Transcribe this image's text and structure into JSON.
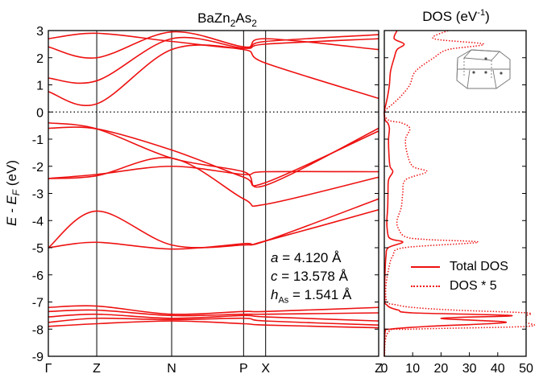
{
  "band_panel": {
    "title": {
      "base": "BaZn",
      "sub1": "2",
      "mid": "As",
      "sub2": "2"
    },
    "ylabel": {
      "pre": "E - E",
      "sub": "F",
      "post": " (eV)"
    },
    "ylim": [
      -9,
      3
    ],
    "yticks": [
      "-9",
      "-8",
      "-7",
      "-6",
      "-5",
      "-4",
      "-3",
      "-2",
      "-1",
      "0",
      "1",
      "2",
      "3"
    ],
    "kpoints": [
      {
        "label": "Γ",
        "pos": 0.0
      },
      {
        "label": "Z",
        "pos": 0.1465
      },
      {
        "label": "N",
        "pos": 0.3733
      },
      {
        "label": "P",
        "pos": 0.5911
      },
      {
        "label": "X",
        "pos": 0.6578
      },
      {
        "label": "Z",
        "pos": 1.0
      }
    ],
    "params": [
      {
        "sym": "a",
        "sub": "",
        "value": " = 4.120 Å"
      },
      {
        "sym": "c",
        "sub": "",
        "value": " = 13.578 Å"
      },
      {
        "sym": "h",
        "sub": "As",
        "value": " = 1.541 Å"
      }
    ],
    "fermi_level": 0
  },
  "dos_panel": {
    "title": {
      "pre": "DOS (eV",
      "sup": "-1",
      "post": ")"
    },
    "xticks": [
      "0",
      "10",
      "20",
      "30",
      "40",
      "50"
    ],
    "xlim": [
      0,
      50
    ],
    "legend": [
      {
        "label": "Total DOS",
        "style": "solid"
      },
      {
        "label": "DOS * 5",
        "style": "dotted"
      }
    ]
  },
  "colors": {
    "bands": "#ee1111",
    "axes": "#000000"
  },
  "chart_data": [
    {
      "type": "line",
      "title": "BaZn2As2",
      "ylabel": "E - E_F (eV)",
      "ylim": [
        -9,
        3
      ],
      "x_kpath": [
        "Γ",
        "Z",
        "N",
        "P",
        "X",
        "Z"
      ],
      "series": [
        {
          "x": [
            0,
            0.1465,
            0.3733,
            0.5911,
            0.6578,
            1.0
          ],
          "values": [
            -0.4,
            -0.62,
            -1.7,
            -2.2,
            -2.7,
            -0.6
          ]
        },
        {
          "x": [
            0,
            0.1465,
            0.3733,
            0.5911,
            0.6578,
            1.0
          ],
          "values": [
            -0.6,
            -0.62,
            -1.4,
            -2.4,
            -2.6,
            -0.7
          ]
        },
        {
          "x": [
            0,
            0.1465,
            0.3733,
            0.5911,
            0.6578,
            1.0
          ],
          "values": [
            -2.45,
            -2.3,
            -2.0,
            -2.3,
            -2.2,
            -2.2
          ]
        },
        {
          "x": [
            0,
            0.1465,
            0.3733,
            0.5911,
            0.6578,
            1.0
          ],
          "values": [
            -2.45,
            -2.35,
            -1.7,
            -3.2,
            -3.4,
            -2.4
          ]
        },
        {
          "x": [
            0,
            0.1465,
            0.3733,
            0.5911,
            0.6578,
            1.0
          ],
          "values": [
            -5.0,
            -3.65,
            -4.9,
            -4.9,
            -4.75,
            -3.6
          ]
        },
        {
          "x": [
            0,
            0.1465,
            0.3733,
            0.5911,
            0.6578,
            1.0
          ],
          "values": [
            -5.0,
            -4.8,
            -5.05,
            -4.85,
            -4.75,
            -3.2
          ]
        },
        {
          "x": [
            0,
            0.1465,
            0.3733,
            0.5911,
            0.6578,
            1.0
          ],
          "values": [
            0.75,
            0.3,
            2.3,
            2.3,
            1.8,
            0.5
          ]
        },
        {
          "x": [
            0,
            0.1465,
            0.3733,
            0.5911,
            0.6578,
            1.0
          ],
          "values": [
            1.25,
            1.15,
            2.7,
            2.35,
            2.5,
            2.7
          ]
        },
        {
          "x": [
            0,
            0.1465,
            0.3733,
            0.5911,
            0.6578,
            1.0
          ],
          "values": [
            2.4,
            2.0,
            2.95,
            2.4,
            2.6,
            2.85
          ]
        },
        {
          "x": [
            0,
            0.1465,
            0.3733,
            0.5911,
            0.6578,
            1.0
          ],
          "values": [
            2.7,
            2.9,
            2.6,
            2.35,
            2.7,
            2.3
          ]
        },
        {
          "x": [
            0,
            0.1465,
            0.3733,
            0.5911,
            0.6578,
            1.0
          ],
          "values": [
            -7.2,
            -7.15,
            -7.45,
            -7.35,
            -7.35,
            -7.2
          ]
        },
        {
          "x": [
            0,
            0.1465,
            0.3733,
            0.5911,
            0.6578,
            1.0
          ],
          "values": [
            -7.35,
            -7.3,
            -7.5,
            -7.45,
            -7.45,
            -7.4
          ]
        },
        {
          "x": [
            0,
            0.1465,
            0.3733,
            0.5911,
            0.6578,
            1.0
          ],
          "values": [
            -7.55,
            -7.45,
            -7.6,
            -7.5,
            -7.55,
            -7.7
          ]
        },
        {
          "x": [
            0,
            0.1465,
            0.3733,
            0.5911,
            0.6578,
            1.0
          ],
          "values": [
            -7.75,
            -7.6,
            -7.65,
            -7.6,
            -7.7,
            -7.85
          ]
        },
        {
          "x": [
            0,
            0.1465,
            0.3733,
            0.5911,
            0.6578,
            1.0
          ],
          "values": [
            -7.9,
            -7.8,
            -7.7,
            -7.8,
            -7.85,
            -7.95
          ]
        }
      ]
    },
    {
      "type": "line",
      "title": "DOS (eV-1)",
      "xlim": [
        0,
        50
      ],
      "ylim": [
        -9,
        3
      ],
      "series": [
        {
          "name": "Total DOS",
          "style": "solid",
          "energy": [
            -9,
            -8.1,
            -8.0,
            -7.9,
            -7.75,
            -7.6,
            -7.5,
            -7.4,
            -7.3,
            -7.2,
            -7.1,
            -7.0,
            -6.5,
            -5.8,
            -5.3,
            -5.0,
            -4.8,
            -4.7,
            -4.6,
            -4.3,
            -4.0,
            -3.5,
            -3.0,
            -2.5,
            -2.2,
            -2.0,
            -1.5,
            -1.0,
            -0.6,
            -0.4,
            -0.3,
            0,
            0.3,
            0.6,
            1.0,
            1.5,
            2.0,
            2.3,
            2.5,
            2.7,
            3.0
          ],
          "dos": [
            0,
            0.3,
            2,
            15,
            43,
            20,
            45,
            10,
            5,
            2,
            0.8,
            0.2,
            0.1,
            0.3,
            0.6,
            1.4,
            6.5,
            3,
            1.5,
            1,
            0.9,
            1.2,
            1.3,
            1.5,
            3,
            2,
            1.6,
            1.5,
            1.8,
            1.2,
            0.3,
            0,
            0.6,
            1.2,
            1.8,
            2.2,
            3.5,
            4.5,
            7,
            3.5,
            4.5
          ]
        },
        {
          "name": "DOS * 5",
          "style": "dotted",
          "energy": [
            -9,
            -8.1,
            -8.0,
            -7.9,
            -7.75,
            -7.6,
            -7.5,
            -7.4,
            -7.3,
            -7.2,
            -7.1,
            -7.0,
            -6.5,
            -5.8,
            -5.3,
            -5.0,
            -4.8,
            -4.7,
            -4.6,
            -4.3,
            -4.0,
            -3.5,
            -3.0,
            -2.5,
            -2.2,
            -2.0,
            -1.5,
            -1.0,
            -0.6,
            -0.4,
            -0.3,
            0,
            0.3,
            0.6,
            1.0,
            1.5,
            2.0,
            2.3,
            2.5,
            2.7,
            3.0
          ],
          "dos": [
            0,
            1.5,
            10,
            50,
            50,
            50,
            50,
            50,
            25,
            10,
            4,
            1,
            0.5,
            1.5,
            3,
            7,
            33,
            15,
            7.5,
            5,
            4.5,
            6,
            6.5,
            7.5,
            15,
            10,
            8,
            7.5,
            9,
            6,
            1.5,
            0,
            3,
            6,
            9,
            11,
            17.5,
            22.5,
            35,
            17.5,
            22.5
          ]
        }
      ]
    }
  ]
}
